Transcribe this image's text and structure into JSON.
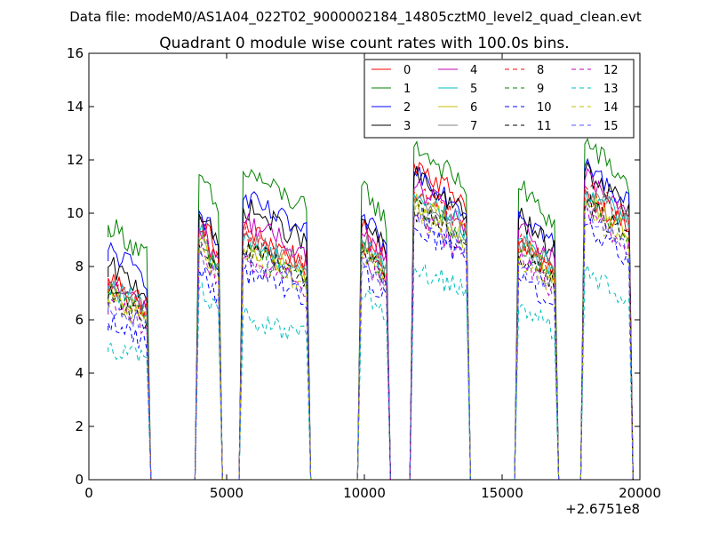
{
  "chart_data": {
    "type": "line",
    "suptitle": "Data file: modeM0/AS1A04_022T02_9000002184_14805cztM0_level2_quad_clean.evt",
    "title": "Quadrant 0 module wise count rates with 100.0s bins.",
    "xlabel": "",
    "ylabel": "",
    "x_offset_label": "+2.6751e8",
    "xlim": [
      0,
      20000
    ],
    "ylim": [
      0,
      16
    ],
    "x_ticks": [
      0,
      5000,
      10000,
      15000,
      20000
    ],
    "y_ticks": [
      0,
      2,
      4,
      6,
      8,
      10,
      12,
      14,
      16
    ],
    "legend_location": "upper right",
    "legend_columns": 4,
    "bin_size_s": 100,
    "orbit_windows": [
      [
        700,
        2100
      ],
      [
        4000,
        4700
      ],
      [
        5600,
        7900
      ],
      [
        9900,
        10800
      ],
      [
        11800,
        13700
      ],
      [
        15600,
        16900
      ],
      [
        18000,
        19600
      ]
    ],
    "series": [
      {
        "name": "0",
        "color": "#ff0000",
        "style": "solid",
        "levels": [
          7.2,
          9.3,
          8.9,
          9.0,
          11.3,
          8.4,
          10.2
        ]
      },
      {
        "name": "1",
        "color": "#008000",
        "style": "solid",
        "levels": [
          9.1,
          10.9,
          11.0,
          10.5,
          11.9,
          10.4,
          12.0
        ]
      },
      {
        "name": "2",
        "color": "#0000ff",
        "style": "solid",
        "levels": [
          8.2,
          9.6,
          10.0,
          9.4,
          11.0,
          9.6,
          11.2
        ]
      },
      {
        "name": "3",
        "color": "#000000",
        "style": "solid",
        "levels": [
          7.6,
          9.5,
          9.7,
          9.3,
          10.8,
          9.3,
          11.0
        ]
      },
      {
        "name": "4",
        "color": "#bf00bf",
        "style": "solid",
        "levels": [
          7.0,
          9.0,
          9.2,
          8.8,
          10.4,
          8.9,
          10.7
        ]
      },
      {
        "name": "5",
        "color": "#00bfbf",
        "style": "solid",
        "levels": [
          6.9,
          8.8,
          8.5,
          8.6,
          10.2,
          8.6,
          10.4
        ]
      },
      {
        "name": "6",
        "color": "#bfbf00",
        "style": "solid",
        "levels": [
          6.6,
          8.5,
          8.3,
          8.4,
          9.9,
          8.3,
          10.1
        ]
      },
      {
        "name": "7",
        "color": "#808080",
        "style": "solid",
        "levels": [
          6.8,
          8.8,
          8.7,
          8.6,
          10.0,
          8.5,
          10.4
        ]
      },
      {
        "name": "8",
        "color": "#ff0000",
        "style": "dashed",
        "levels": [
          7.0,
          8.9,
          8.6,
          8.5,
          10.3,
          8.5,
          10.5
        ]
      },
      {
        "name": "9",
        "color": "#008000",
        "style": "dashed",
        "levels": [
          6.7,
          8.6,
          8.2,
          8.2,
          9.8,
          8.1,
          10.0
        ]
      },
      {
        "name": "10",
        "color": "#0000ff",
        "style": "dashed",
        "levels": [
          5.6,
          7.5,
          7.4,
          7.4,
          9.0,
          7.2,
          9.1
        ]
      },
      {
        "name": "11",
        "color": "#000000",
        "style": "dashed",
        "levels": [
          6.5,
          8.4,
          8.2,
          8.1,
          9.6,
          8.0,
          9.8
        ]
      },
      {
        "name": "12",
        "color": "#bf00bf",
        "style": "dashed",
        "levels": [
          6.2,
          8.1,
          7.9,
          7.9,
          9.3,
          7.8,
          9.5
        ]
      },
      {
        "name": "13",
        "color": "#00bfbf",
        "style": "dashed",
        "levels": [
          4.8,
          6.8,
          5.8,
          6.5,
          7.6,
          6.1,
          7.4
        ]
      },
      {
        "name": "14",
        "color": "#bfbf00",
        "style": "dashed",
        "levels": [
          6.4,
          8.2,
          8.0,
          8.0,
          9.5,
          7.9,
          9.6
        ]
      },
      {
        "name": "15",
        "color": "#5555ff",
        "style": "dashed",
        "levels": [
          6.3,
          8.1,
          7.9,
          7.9,
          9.4,
          7.8,
          9.6
        ]
      }
    ]
  }
}
